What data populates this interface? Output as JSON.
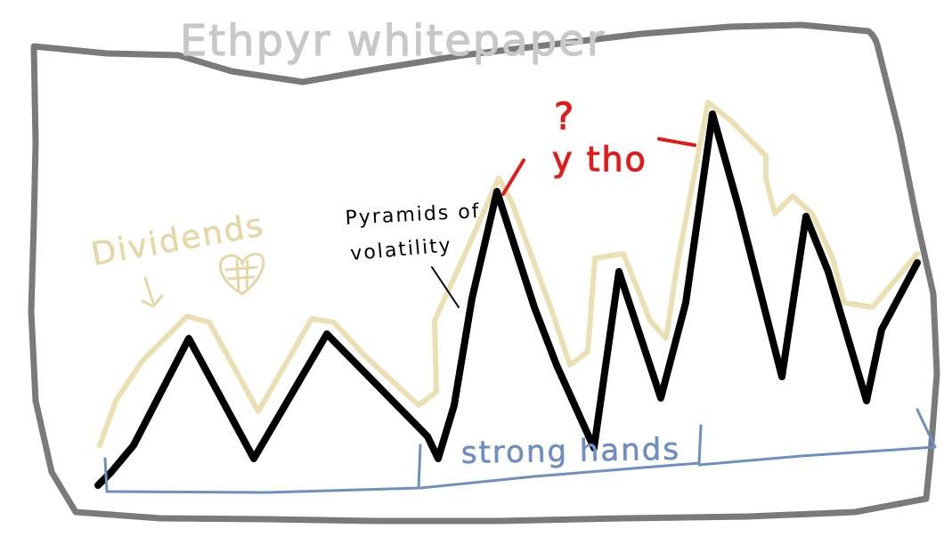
{
  "title": "Ethpyr whitepaper",
  "annotations": {
    "dividends": "Dividends",
    "pyramids_line1": "Pyramids of",
    "pyramids_line2": "volatility",
    "question_mark": "?",
    "ytho": "y tho",
    "strong_hands": "strong hands"
  },
  "colors": {
    "frame": "#7a7a7a",
    "title": "#c8c8c8",
    "price_line": "#000000",
    "glow": "#ebe0b4",
    "dividends": "#e6d7a8",
    "brackets": "#6e8fc0",
    "ytho": "#e11a1a"
  }
}
